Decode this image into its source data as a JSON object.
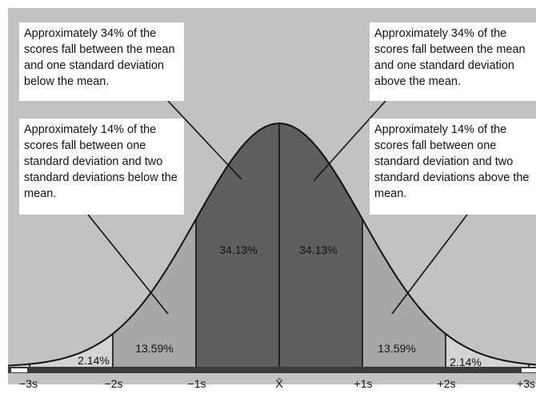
{
  "callouts": {
    "left_top": "Approximately 34% of the scores fall between the mean and one standard deviation below the mean.",
    "right_top": "Approximately 34% of the scores fall between the mean and one standard deviation above the mean.",
    "left_bottom": "Approximately 14% of the scores fall between one standard deviation and two standard deviations below the mean.",
    "right_bottom": "Approximately 14% of the scores fall between one standard deviation and two standard deviations above the mean."
  },
  "regions": {
    "inner_left": "34.13%",
    "inner_right": "34.13%",
    "middle_left": "13.59%",
    "middle_right": "13.59%",
    "outer_left": "2.14%",
    "outer_right": "2.14%"
  },
  "axis_ticks": [
    "−3s",
    "−2s",
    "−1s",
    "X̄",
    "+1s",
    "+2s",
    "+3s"
  ],
  "colors": {
    "background": "#c2c2c2",
    "inner_band": "#5f5f5f",
    "middle_band": "#a8a8a8",
    "outer_band": "#d4d4d4",
    "axis_bar": "#3a3a3a",
    "callout_bg": "#ffffff"
  }
}
